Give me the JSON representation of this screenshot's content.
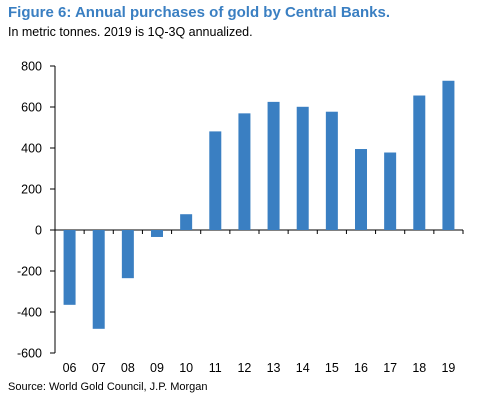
{
  "colors": {
    "title": "#3A7FC2",
    "bar": "#3A7FC2",
    "axis": "#000000"
  },
  "chart_data": {
    "type": "bar",
    "title": "Figure 6: Annual purchases of gold by Central Banks.",
    "subtitle": "In metric tonnes. 2019 is 1Q-3Q annualized.",
    "source": "Source: World Gold Council, J.P. Morgan",
    "categories": [
      "06",
      "07",
      "08",
      "09",
      "10",
      "11",
      "12",
      "13",
      "14",
      "15",
      "16",
      "17",
      "18",
      "19"
    ],
    "values": [
      -365,
      -482,
      -235,
      -34,
      77,
      481,
      569,
      625,
      601,
      577,
      395,
      378,
      656,
      728
    ],
    "yticks": [
      "800",
      "600",
      "400",
      "200",
      "0",
      "-200",
      "-400",
      "-600"
    ],
    "ylim": [
      -600,
      800
    ],
    "xlabel": "",
    "ylabel": "",
    "grid": false,
    "legend": "none"
  }
}
